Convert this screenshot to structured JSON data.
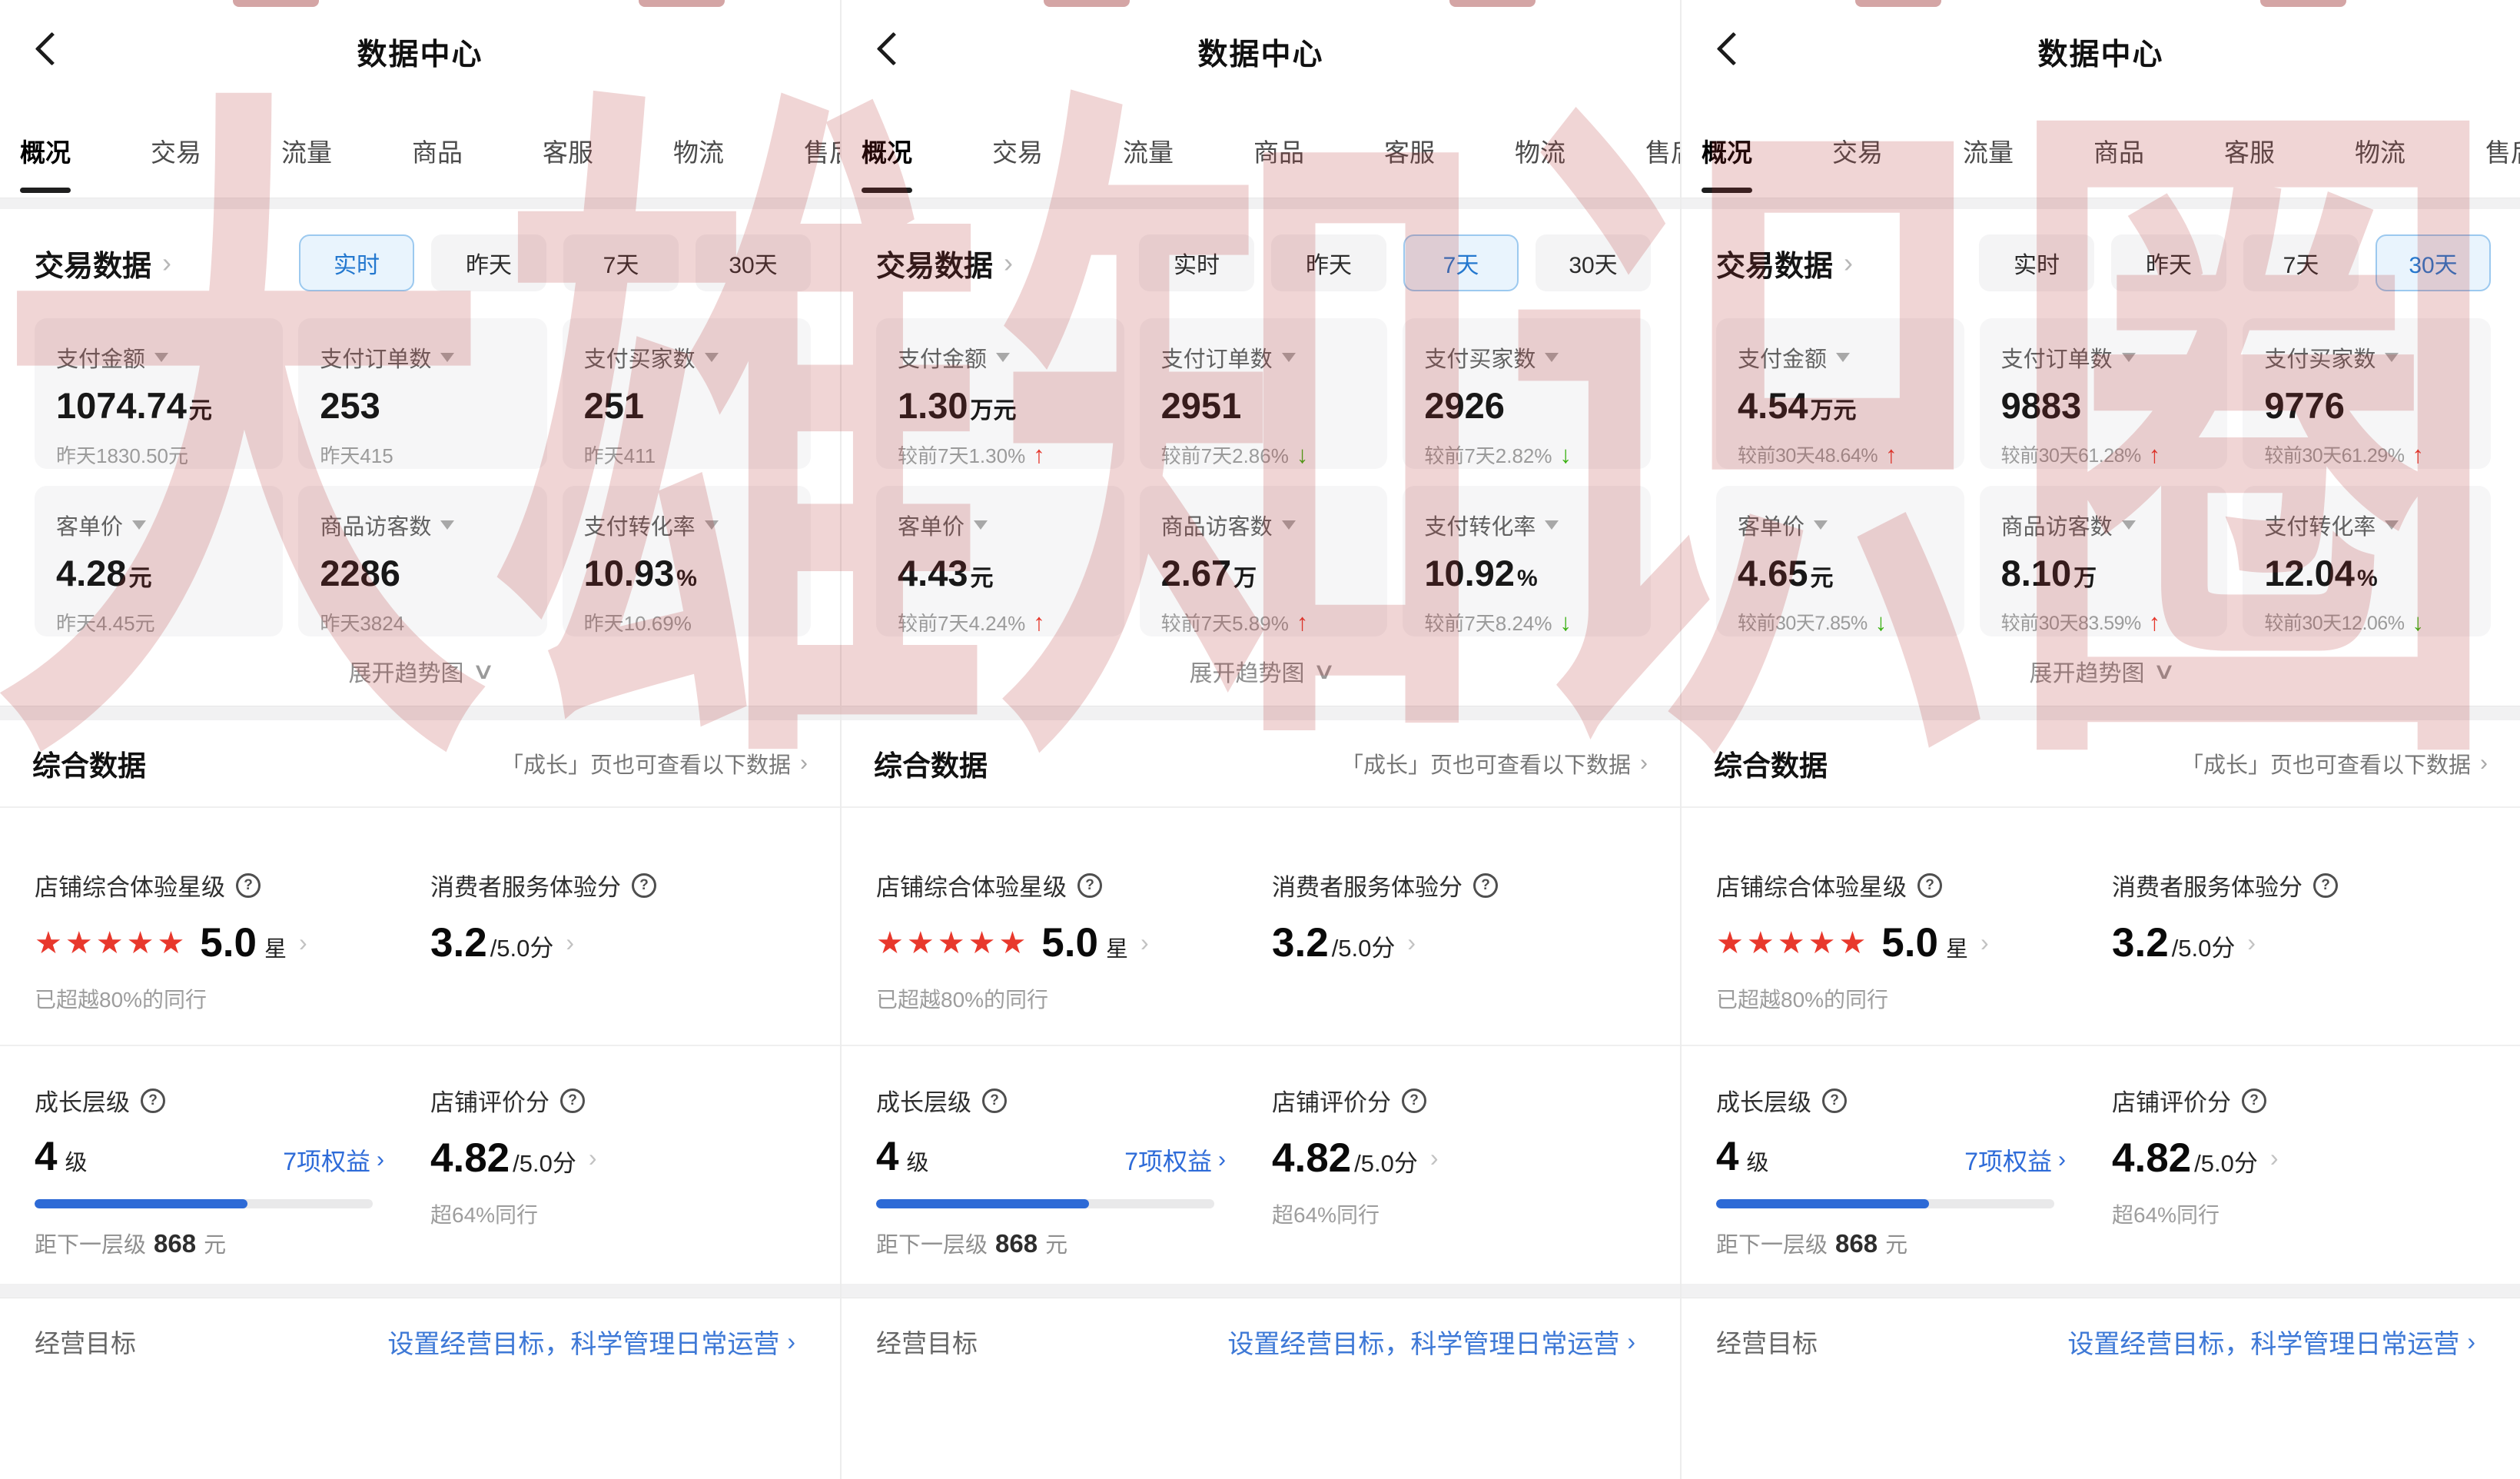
{
  "watermark": "大雄知识圈",
  "icons": {
    "back": "‹",
    "chevron_right": "›",
    "caret_down": "▼",
    "question": "?",
    "stars": "★★★★★",
    "expand_caret": "∨",
    "arrow_up": "↑",
    "arrow_down": "↓"
  },
  "shared": {
    "title": "数据中心",
    "tabs": [
      "概况",
      "交易",
      "流量",
      "商品",
      "客服",
      "物流",
      "售后"
    ],
    "active_tab": "概况",
    "trade_section_title": "交易数据",
    "filters": [
      "实时",
      "昨天",
      "7天",
      "30天"
    ],
    "expand_label": "展开趋势图",
    "comp_title": "综合数据",
    "comp_link": "「成长」页也可查看以下数据",
    "star_block": {
      "label": "店铺综合体验星级",
      "value": "5.0",
      "unit": "星",
      "sub": "已超越80%的同行"
    },
    "service_block": {
      "label": "消费者服务体验分",
      "value": "3.2",
      "denom": "/5.0分"
    },
    "growth_block": {
      "label": "成长层级",
      "value": "4",
      "unit": "级",
      "rights": "7项权益",
      "progress_pct": 63,
      "sub_prefix": "距下一层级",
      "sub_value": "868",
      "sub_unit": "元"
    },
    "review_block": {
      "label": "店铺评价分",
      "value": "4.82",
      "denom": "/5.0分",
      "sub": "超64%同行"
    },
    "goal_label": "经营目标",
    "goal_link": "设置经营目标，科学管理日常运营"
  },
  "colors": {
    "accent_blue": "#2e7bd6",
    "filter_selected_blue": "#2478cf",
    "up_red": "#e5362b",
    "down_green": "#3ab012",
    "star_red": "#e8382c",
    "watermark_red": "#b22d2d"
  },
  "panels": [
    {
      "selected_filter": "实时",
      "cards": [
        {
          "label": "支付金额",
          "value": "1074.74",
          "unit": "元",
          "sub": "昨天1830.50元"
        },
        {
          "label": "支付订单数",
          "value": "253",
          "unit": "",
          "sub": "昨天415"
        },
        {
          "label": "支付买家数",
          "value": "251",
          "unit": "",
          "sub": "昨天411"
        },
        {
          "label": "客单价",
          "value": "4.28",
          "unit": "元",
          "sub": "昨天4.45元"
        },
        {
          "label": "商品访客数",
          "value": "2286",
          "unit": "",
          "sub": "昨天3824"
        },
        {
          "label": "支付转化率",
          "value": "10.93",
          "unit": "%",
          "sub": "昨天10.69%"
        }
      ]
    },
    {
      "selected_filter": "7天",
      "cards": [
        {
          "label": "支付金额",
          "value": "1.30",
          "unit": "万元",
          "sub": "较前7天1.30%",
          "trend": "up"
        },
        {
          "label": "支付订单数",
          "value": "2951",
          "unit": "",
          "sub": "较前7天2.86%",
          "trend": "down"
        },
        {
          "label": "支付买家数",
          "value": "2926",
          "unit": "",
          "sub": "较前7天2.82%",
          "trend": "down"
        },
        {
          "label": "客单价",
          "value": "4.43",
          "unit": "元",
          "sub": "较前7天4.24%",
          "trend": "up"
        },
        {
          "label": "商品访客数",
          "value": "2.67",
          "unit": "万",
          "sub": "较前7天5.89%",
          "trend": "up"
        },
        {
          "label": "支付转化率",
          "value": "10.92",
          "unit": "%",
          "sub": "较前7天8.24%",
          "trend": "down"
        }
      ]
    },
    {
      "selected_filter": "30天",
      "cards": [
        {
          "label": "支付金额",
          "value": "4.54",
          "unit": "万元",
          "sub": "较前30天48.64%",
          "trend": "up"
        },
        {
          "label": "支付订单数",
          "value": "9883",
          "unit": "",
          "sub": "较前30天61.28%",
          "trend": "up"
        },
        {
          "label": "支付买家数",
          "value": "9776",
          "unit": "",
          "sub": "较前30天61.29%",
          "trend": "up"
        },
        {
          "label": "客单价",
          "value": "4.65",
          "unit": "元",
          "sub": "较前30天7.85%",
          "trend": "down"
        },
        {
          "label": "商品访客数",
          "value": "8.10",
          "unit": "万",
          "sub": "较前30天83.59%",
          "trend": "up"
        },
        {
          "label": "支付转化率",
          "value": "12.04",
          "unit": "%",
          "sub": "较前30天12.06%",
          "trend": "down"
        }
      ]
    }
  ]
}
